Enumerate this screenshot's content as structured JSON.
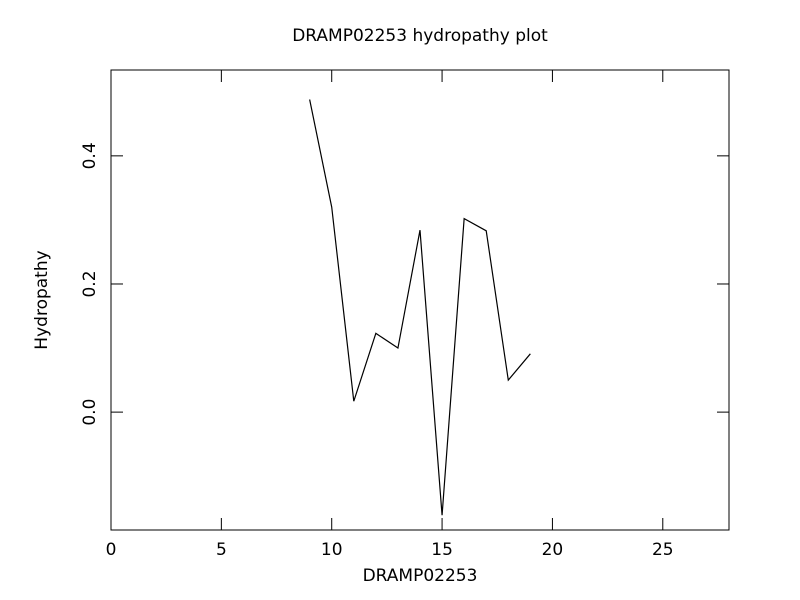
{
  "chart_data": {
    "type": "line",
    "title": "DRAMP02253 hydropathy plot",
    "x_label": "DRAMP02253",
    "y_label": "Hydropathy",
    "series": [
      {
        "color": "#000000",
        "x": [
          9,
          10,
          11,
          12,
          13,
          14,
          15,
          16,
          17,
          18,
          19
        ],
        "values": [
          0.488,
          0.32,
          0.017,
          0.123,
          0.1,
          0.284,
          -0.161,
          0.302,
          0.283,
          0.05,
          0.091
        ]
      }
    ],
    "xlim": [
      0,
      28
    ],
    "ylim": [
      -0.184,
      0.534
    ],
    "xticks": [
      0,
      5,
      10,
      15,
      20,
      25
    ],
    "yticks": [
      {
        "value": 0,
        "label": "0.0"
      },
      {
        "value": 0.2,
        "label": "0.2"
      },
      {
        "value": 0.4,
        "label": "0.4"
      }
    ]
  }
}
